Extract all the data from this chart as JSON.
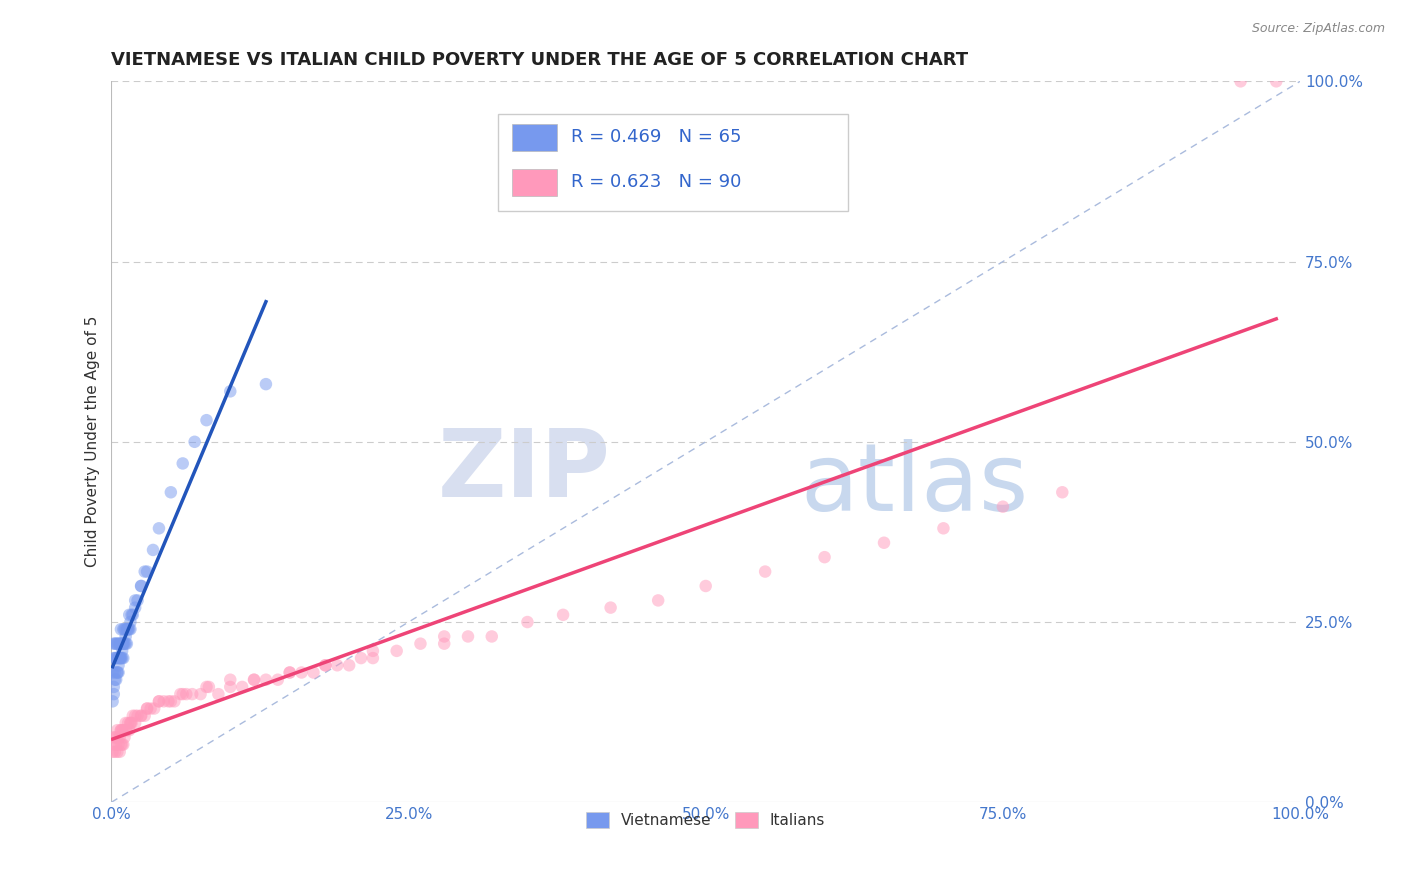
{
  "title": "VIETNAMESE VS ITALIAN CHILD POVERTY UNDER THE AGE OF 5 CORRELATION CHART",
  "source": "Source: ZipAtlas.com",
  "ylabel": "Child Poverty Under the Age of 5",
  "watermark_zip": "ZIP",
  "watermark_atlas": "atlas",
  "series": [
    {
      "name": "Vietnamese",
      "R": 0.469,
      "N": 65,
      "color": "#7799ee",
      "line_color": "#2255bb",
      "alpha": 0.5,
      "x": [
        0.001,
        0.002,
        0.002,
        0.003,
        0.003,
        0.003,
        0.004,
        0.004,
        0.005,
        0.005,
        0.005,
        0.006,
        0.006,
        0.006,
        0.007,
        0.007,
        0.008,
        0.008,
        0.008,
        0.009,
        0.009,
        0.01,
        0.01,
        0.01,
        0.011,
        0.011,
        0.012,
        0.012,
        0.013,
        0.013,
        0.014,
        0.015,
        0.015,
        0.016,
        0.017,
        0.018,
        0.02,
        0.022,
        0.025,
        0.028,
        0.001,
        0.002,
        0.002,
        0.003,
        0.004,
        0.005,
        0.006,
        0.007,
        0.008,
        0.009,
        0.01,
        0.012,
        0.014,
        0.016,
        0.02,
        0.025,
        0.03,
        0.035,
        0.04,
        0.05,
        0.06,
        0.07,
        0.08,
        0.1,
        0.13
      ],
      "y": [
        0.18,
        0.2,
        0.22,
        0.18,
        0.2,
        0.22,
        0.2,
        0.22,
        0.18,
        0.2,
        0.22,
        0.18,
        0.2,
        0.22,
        0.2,
        0.22,
        0.2,
        0.22,
        0.24,
        0.2,
        0.22,
        0.2,
        0.22,
        0.24,
        0.22,
        0.24,
        0.22,
        0.24,
        0.22,
        0.24,
        0.24,
        0.24,
        0.26,
        0.24,
        0.26,
        0.26,
        0.28,
        0.28,
        0.3,
        0.32,
        0.14,
        0.15,
        0.16,
        0.17,
        0.17,
        0.18,
        0.19,
        0.2,
        0.2,
        0.21,
        0.22,
        0.23,
        0.24,
        0.25,
        0.27,
        0.3,
        0.32,
        0.35,
        0.38,
        0.43,
        0.47,
        0.5,
        0.53,
        0.57,
        0.58
      ]
    },
    {
      "name": "Italians",
      "R": 0.623,
      "N": 90,
      "color": "#ff99bb",
      "line_color": "#ee4477",
      "alpha": 0.5,
      "x": [
        0.001,
        0.002,
        0.003,
        0.003,
        0.004,
        0.005,
        0.005,
        0.006,
        0.007,
        0.007,
        0.008,
        0.008,
        0.009,
        0.009,
        0.01,
        0.01,
        0.011,
        0.012,
        0.013,
        0.014,
        0.015,
        0.016,
        0.017,
        0.018,
        0.02,
        0.022,
        0.025,
        0.028,
        0.03,
        0.033,
        0.036,
        0.04,
        0.044,
        0.048,
        0.053,
        0.058,
        0.063,
        0.068,
        0.075,
        0.082,
        0.09,
        0.1,
        0.11,
        0.12,
        0.13,
        0.14,
        0.15,
        0.16,
        0.17,
        0.18,
        0.19,
        0.2,
        0.21,
        0.22,
        0.24,
        0.26,
        0.28,
        0.3,
        0.32,
        0.35,
        0.38,
        0.42,
        0.46,
        0.5,
        0.55,
        0.6,
        0.65,
        0.7,
        0.75,
        0.8,
        0.002,
        0.005,
        0.008,
        0.012,
        0.016,
        0.02,
        0.025,
        0.03,
        0.04,
        0.05,
        0.06,
        0.08,
        0.1,
        0.12,
        0.15,
        0.18,
        0.22,
        0.28,
        0.95,
        0.98
      ],
      "y": [
        0.07,
        0.08,
        0.07,
        0.09,
        0.08,
        0.07,
        0.09,
        0.08,
        0.07,
        0.09,
        0.08,
        0.1,
        0.08,
        0.1,
        0.08,
        0.1,
        0.09,
        0.1,
        0.1,
        0.11,
        0.1,
        0.11,
        0.11,
        0.12,
        0.11,
        0.12,
        0.12,
        0.12,
        0.13,
        0.13,
        0.13,
        0.14,
        0.14,
        0.14,
        0.14,
        0.15,
        0.15,
        0.15,
        0.15,
        0.16,
        0.15,
        0.16,
        0.16,
        0.17,
        0.17,
        0.17,
        0.18,
        0.18,
        0.18,
        0.19,
        0.19,
        0.19,
        0.2,
        0.2,
        0.21,
        0.22,
        0.22,
        0.23,
        0.23,
        0.25,
        0.26,
        0.27,
        0.28,
        0.3,
        0.32,
        0.34,
        0.36,
        0.38,
        0.41,
        0.43,
        0.09,
        0.1,
        0.1,
        0.11,
        0.11,
        0.12,
        0.12,
        0.13,
        0.14,
        0.14,
        0.15,
        0.16,
        0.17,
        0.17,
        0.18,
        0.19,
        0.21,
        0.23,
        1.0,
        1.0
      ]
    }
  ],
  "xlim": [
    0.0,
    1.0
  ],
  "ylim": [
    0.0,
    1.0
  ],
  "xticks": [
    0.0,
    0.25,
    0.5,
    0.75,
    1.0
  ],
  "yticks": [
    0.0,
    0.25,
    0.5,
    0.75,
    1.0
  ],
  "background_color": "#ffffff",
  "grid_color": "#cccccc",
  "diagonal_color": "#aabbdd",
  "title_fontsize": 13,
  "axis_label_fontsize": 11,
  "tick_fontsize": 11,
  "marker_size": 9
}
